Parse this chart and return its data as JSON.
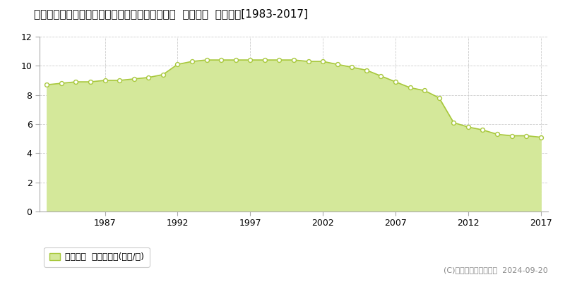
{
  "title": "徳島県鳴門市鳴門町土佐泊浦字高砂１７７番４外  公示地価  地価推移[1983-2017]",
  "years": [
    1983,
    1984,
    1985,
    1986,
    1987,
    1988,
    1989,
    1990,
    1991,
    1992,
    1993,
    1994,
    1995,
    1996,
    1997,
    1998,
    1999,
    2000,
    2001,
    2002,
    2003,
    2004,
    2005,
    2006,
    2007,
    2008,
    2009,
    2010,
    2011,
    2012,
    2013,
    2014,
    2015,
    2016,
    2017
  ],
  "values": [
    8.7,
    8.8,
    8.9,
    8.9,
    9.0,
    9.0,
    9.1,
    9.2,
    9.4,
    10.1,
    10.3,
    10.4,
    10.4,
    10.4,
    10.4,
    10.4,
    10.4,
    10.4,
    10.3,
    10.3,
    10.1,
    9.9,
    9.7,
    9.3,
    8.9,
    8.5,
    8.3,
    7.8,
    6.1,
    5.8,
    5.6,
    5.3,
    5.2,
    5.2,
    5.1
  ],
  "line_color": "#a8c83c",
  "fill_color": "#d4e89a",
  "marker_facecolor": "#ffffff",
  "marker_edgecolor": "#a8c83c",
  "background_color": "#ffffff",
  "grid_color": "#cccccc",
  "ylim": [
    0,
    12
  ],
  "yticks": [
    0,
    2,
    4,
    6,
    8,
    10,
    12
  ],
  "xticks": [
    1987,
    1992,
    1997,
    2002,
    2007,
    2012,
    2017
  ],
  "legend_label": "公示地価  平均坪単価(万円/坪)",
  "copyright_text": "(C)土地価格ドットコム  2024-09-20",
  "title_fontsize": 11,
  "tick_fontsize": 9,
  "legend_fontsize": 9,
  "copyright_fontsize": 8
}
